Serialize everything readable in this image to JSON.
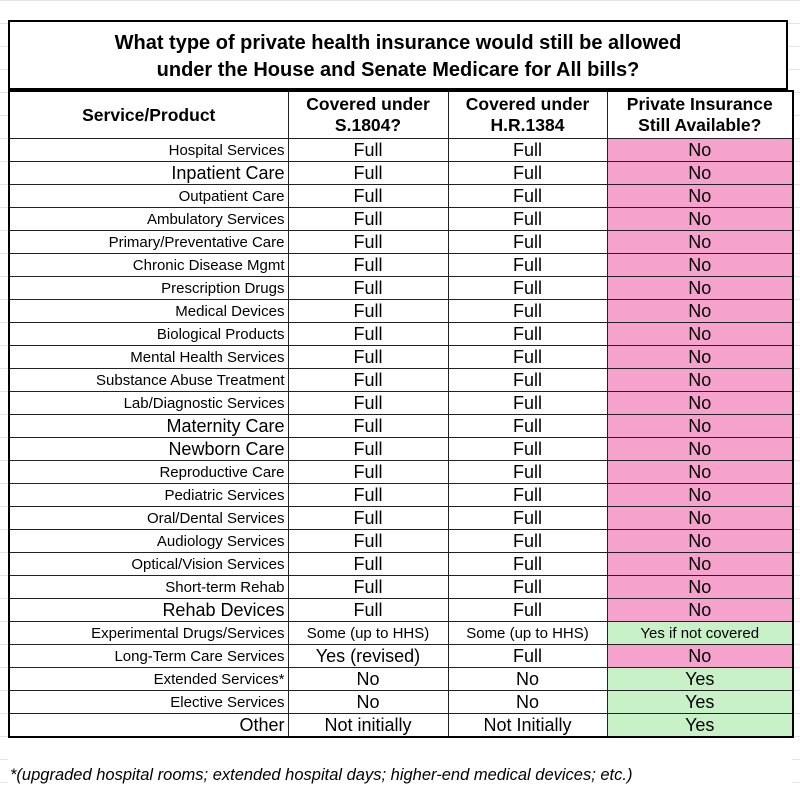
{
  "title": [
    "What type of private health insurance would still be allowed",
    "under the House and Senate Medicare for All bills?"
  ],
  "table": {
    "headers": [
      [
        "Service/Product"
      ],
      [
        "Covered under",
        "S.1804?"
      ],
      [
        "Covered under",
        "H.R.1384"
      ],
      [
        "Private Insurance",
        "Still Available?"
      ]
    ],
    "rows": [
      [
        "Hospital Services",
        "Full",
        "Full",
        "No"
      ],
      [
        "Inpatient Care",
        "Full",
        "Full",
        "No"
      ],
      [
        "Outpatient Care",
        "Full",
        "Full",
        "No"
      ],
      [
        "Ambulatory Services",
        "Full",
        "Full",
        "No"
      ],
      [
        "Primary/Preventative Care",
        "Full",
        "Full",
        "No"
      ],
      [
        "Chronic Disease Mgmt",
        "Full",
        "Full",
        "No"
      ],
      [
        "Prescription Drugs",
        "Full",
        "Full",
        "No"
      ],
      [
        "Medical Devices",
        "Full",
        "Full",
        "No"
      ],
      [
        "Biological Products",
        "Full",
        "Full",
        "No"
      ],
      [
        "Mental Health Services",
        "Full",
        "Full",
        "No"
      ],
      [
        "Substance Abuse Treatment",
        "Full",
        "Full",
        "No"
      ],
      [
        "Lab/Diagnostic Services",
        "Full",
        "Full",
        "No"
      ],
      [
        "Maternity Care",
        "Full",
        "Full",
        "No"
      ],
      [
        "Newborn Care",
        "Full",
        "Full",
        "No"
      ],
      [
        "Reproductive Care",
        "Full",
        "Full",
        "No"
      ],
      [
        "Pediatric Services",
        "Full",
        "Full",
        "No"
      ],
      [
        "Oral/Dental Services",
        "Full",
        "Full",
        "No"
      ],
      [
        "Audiology Services",
        "Full",
        "Full",
        "No"
      ],
      [
        "Optical/Vision Services",
        "Full",
        "Full",
        "No"
      ],
      [
        "Short-term Rehab",
        "Full",
        "Full",
        "No"
      ],
      [
        "Rehab Devices",
        "Full",
        "Full",
        "No"
      ],
      [
        "Experimental Drugs/Services",
        "Some (up to HHS)",
        "Some (up to HHS)",
        "Yes if not covered"
      ],
      [
        "Long-Term Care Services",
        "Yes (revised)",
        "Full",
        "No"
      ],
      [
        "Extended Services*",
        "No",
        "No",
        "Yes"
      ],
      [
        "Elective Services",
        "No",
        "No",
        "Yes"
      ],
      [
        "Other",
        "Not initially",
        "Not Initially",
        "Yes"
      ]
    ]
  },
  "footnote": "*(upgraded hospital rooms; extended hospital days; higher-end medical devices; etc.)"
}
